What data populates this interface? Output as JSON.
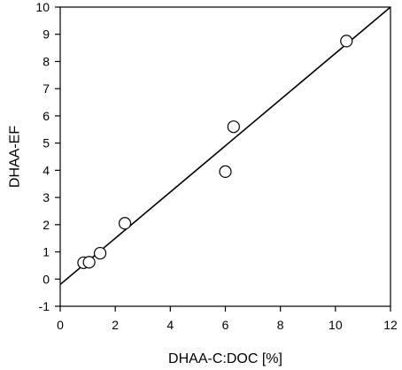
{
  "chart_data": {
    "type": "scatter",
    "title": "",
    "xlabel": "DHAA-C:DOC [%]",
    "ylabel": "DHAA-EF",
    "xlim": [
      0,
      12
    ],
    "ylim": [
      -1,
      10
    ],
    "xticks": [
      0,
      2,
      4,
      6,
      8,
      10,
      12
    ],
    "yticks": [
      -1,
      0,
      1,
      2,
      3,
      4,
      5,
      6,
      7,
      8,
      9,
      10
    ],
    "grid": false,
    "legend": "none",
    "series": [
      {
        "marker": "open-circle",
        "color": "#000000",
        "points": [
          {
            "x": 0.85,
            "y": 0.6
          },
          {
            "x": 1.05,
            "y": 0.62
          },
          {
            "x": 1.45,
            "y": 0.95
          },
          {
            "x": 2.35,
            "y": 2.05
          },
          {
            "x": 6.0,
            "y": 3.95
          },
          {
            "x": 6.3,
            "y": 5.6
          },
          {
            "x": 10.4,
            "y": 8.75
          }
        ]
      }
    ],
    "trendline": {
      "type": "linear",
      "color": "#000000",
      "points": [
        {
          "x": 0,
          "y": -0.2
        },
        {
          "x": 12,
          "y": 10
        }
      ]
    }
  }
}
